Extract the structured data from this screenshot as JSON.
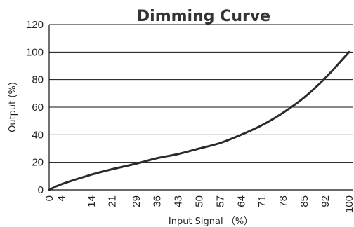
{
  "chart_data": {
    "type": "line",
    "title": "Dimming Curve",
    "xlabel": "Input Signal （%）",
    "ylabel": "Output (%)",
    "xlim": [
      0,
      100
    ],
    "ylim": [
      0,
      120
    ],
    "x_ticks": [
      "0",
      "4",
      "14",
      "21",
      "29",
      "36",
      "43",
      "50",
      "57",
      "64",
      "71",
      "78",
      "85",
      "92",
      "100"
    ],
    "y_ticks": [
      "0",
      "20",
      "40",
      "60",
      "80",
      "100",
      "120"
    ],
    "grid": "horizontal",
    "series": [
      {
        "color": "#2b2b2b",
        "x": [
          0,
          4,
          14,
          21,
          29,
          36,
          43,
          50,
          57,
          64,
          71,
          78,
          85,
          92,
          100
        ],
        "y": [
          0,
          4,
          11,
          15,
          19,
          23,
          26,
          30,
          34,
          40,
          47,
          56,
          67,
          81,
          100
        ]
      }
    ]
  }
}
